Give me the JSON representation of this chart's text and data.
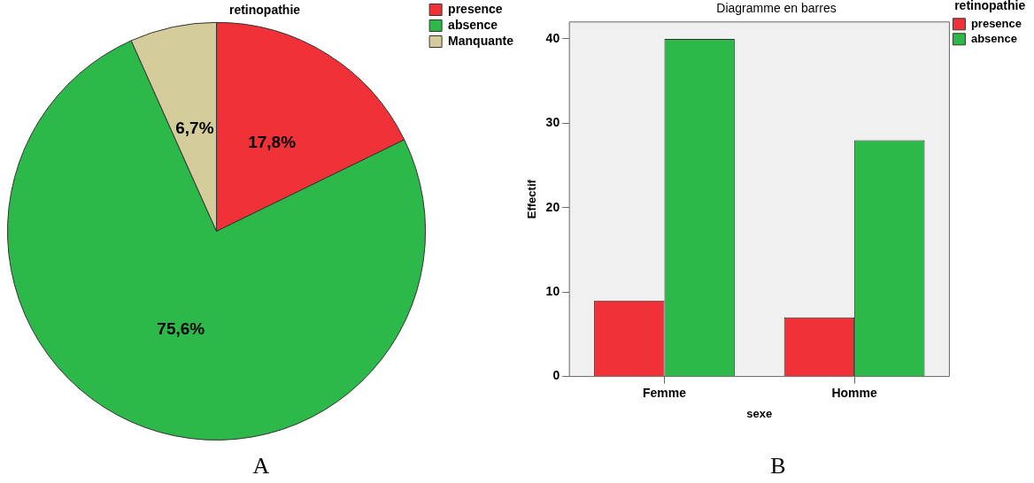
{
  "chart_data": [
    {
      "type": "pie",
      "title": "retinopathie",
      "categories": [
        "presence",
        "absence",
        "Manquante"
      ],
      "values": [
        17.8,
        75.6,
        6.7
      ],
      "colors": [
        "#f03238",
        "#2db84a",
        "#d4cc9a"
      ],
      "value_labels": [
        "17,8%",
        "75,6%",
        "6,7%"
      ],
      "legend": "top right",
      "annotations": [
        "A"
      ]
    },
    {
      "type": "bar",
      "title": "Diagramme en barres",
      "xlabel": "sexe",
      "ylabel": "Effectif",
      "legend_title": "retinopathie",
      "legend": "right",
      "categories": [
        "Femme",
        "Homme"
      ],
      "series": [
        {
          "name": "presence",
          "color": "#f03238",
          "values": [
            9,
            7
          ]
        },
        {
          "name": "absence",
          "color": "#2db84a",
          "values": [
            40,
            28
          ]
        }
      ],
      "ylim": [
        0,
        42
      ],
      "yticks": [
        0,
        10,
        20,
        30,
        40
      ],
      "grid": false,
      "annotations": [
        "B"
      ]
    }
  ]
}
